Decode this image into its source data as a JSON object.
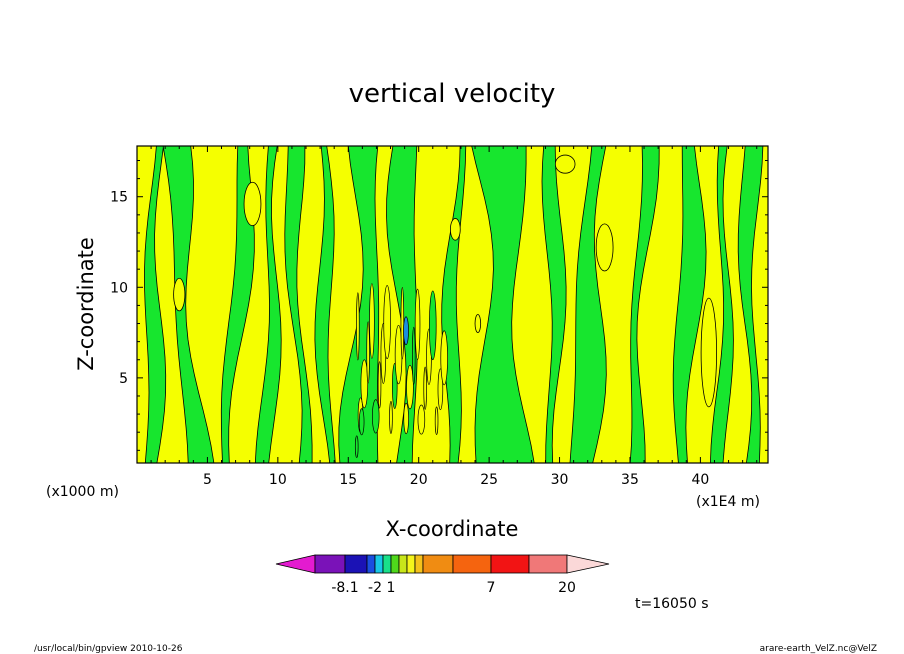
{
  "chart_data": {
    "type": "heatmap",
    "title": "vertical velocity",
    "xlabel": "X-coordinate",
    "ylabel": "Z-coordinate",
    "x_unit_left": "(x1000 m)",
    "x_unit_right": "(x1E4 m)",
    "xlim": [
      0,
      44.8
    ],
    "ylim": [
      0.3,
      17.8
    ],
    "x_ticks": [
      {
        "value": 5,
        "label": "5"
      },
      {
        "value": 10,
        "label": "10"
      },
      {
        "value": 15,
        "label": "15"
      },
      {
        "value": 20,
        "label": "20"
      },
      {
        "value": 25,
        "label": "25"
      },
      {
        "value": 30,
        "label": "30"
      },
      {
        "value": 35,
        "label": "35"
      },
      {
        "value": 40,
        "label": "40"
      }
    ],
    "y_ticks": [
      {
        "value": 5,
        "label": "5"
      },
      {
        "value": 10,
        "label": "10"
      },
      {
        "value": 15,
        "label": "15"
      }
    ],
    "colorbar": {
      "colors": [
        "#e31bd0",
        "#7a12b8",
        "#1b12b5",
        "#1a4fe0",
        "#18c8e6",
        "#19e08a",
        "#4fd81b",
        "#c8e61a",
        "#f5f51b",
        "#f5c21b",
        "#f08c12",
        "#f5640f",
        "#f21414",
        "#f07878",
        "#f7b4b4",
        "#fbd8d8"
      ],
      "labels": [
        {
          "index": 1,
          "text": "-8.1"
        },
        {
          "index": 3,
          "text": "-2"
        },
        {
          "index": 5,
          "text": "1"
        },
        {
          "index": 11,
          "text": "7"
        },
        {
          "index": 15,
          "text": "20"
        }
      ]
    },
    "field_colors": {
      "positive": "#f5ff00",
      "negative": "#17e62e",
      "strong_negative": "#1a8fe0",
      "contour": "#000000"
    },
    "grid": false,
    "legend": "colorbar-bottom"
  },
  "time_label": "t=16050 s",
  "footer_left": "/usr/local/bin/gpview   2010-10-26",
  "footer_right": "arare-earth_VelZ.nc@VelZ"
}
